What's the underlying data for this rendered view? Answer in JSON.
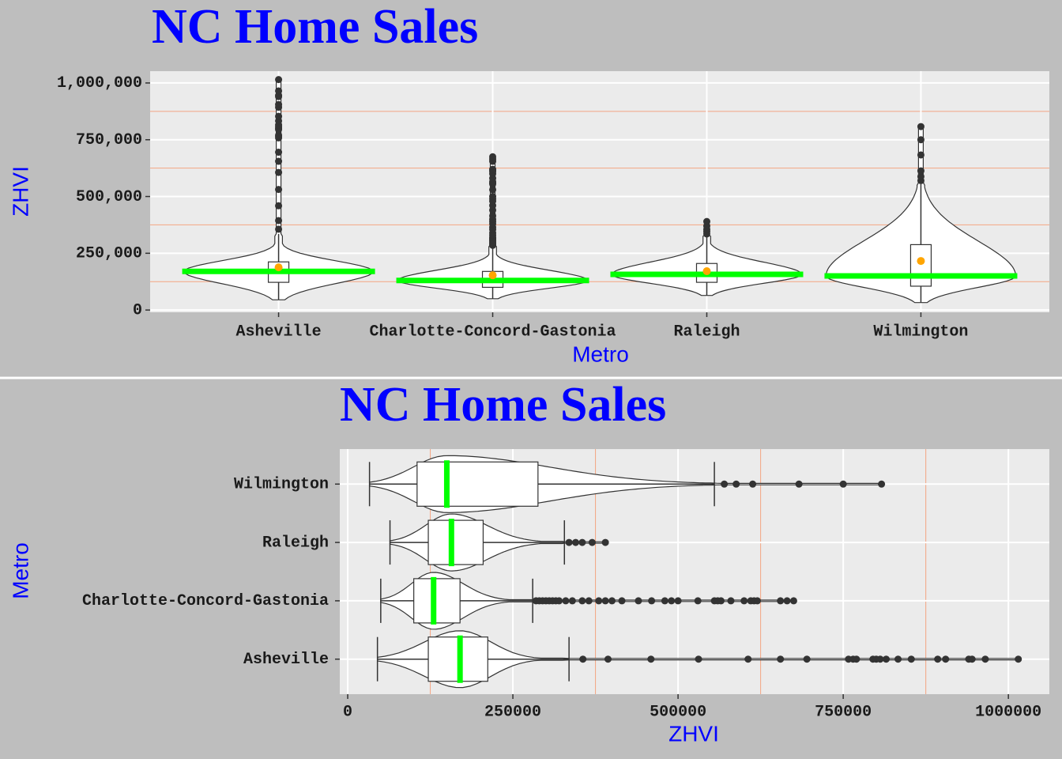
{
  "chart_data": [
    {
      "type": "violin-box",
      "orientation": "vertical",
      "title": "NC Home Sales",
      "x_label": "Metro",
      "y_label": "ZHVI",
      "categories": [
        "Asheville",
        "Charlotte-Concord-Gastonia",
        "Raleigh",
        "Wilmington"
      ],
      "whisker_low": [
        45000,
        50000,
        64000,
        33000
      ],
      "q1": [
        122000,
        100000,
        122000,
        105000
      ],
      "median": [
        170000,
        130000,
        157000,
        150000
      ],
      "q3": [
        212000,
        170000,
        205000,
        288000
      ],
      "whisker_high": [
        335000,
        280000,
        328000,
        555000
      ],
      "means": [
        188000,
        153000,
        171000,
        216000
      ],
      "outliers": [
        [
          356000,
          394000,
          459000,
          531000,
          606000,
          655000,
          695000,
          758000,
          765000,
          770000,
          795000,
          800000,
          806000,
          815000,
          833000,
          853000,
          893000,
          905000,
          940000,
          945000,
          965000,
          1015000
        ],
        [
          285000,
          290000,
          295000,
          300000,
          305000,
          310000,
          315000,
          320000,
          330000,
          340000,
          355000,
          365000,
          380000,
          390000,
          400000,
          415000,
          440000,
          460000,
          480000,
          490000,
          500000,
          530000,
          555000,
          560000,
          565000,
          580000,
          600000,
          610000,
          615000,
          620000,
          655000,
          665000,
          675000
        ],
        [
          335000,
          345000,
          355000,
          370000,
          390000
        ],
        [
          570000,
          588000,
          613000,
          683000,
          750000,
          808000
        ]
      ],
      "median_color": "#00ff00",
      "mean_color": "#ffa500",
      "outlier_color": "#333333",
      "ylim": [
        -10000,
        1052000
      ],
      "yticks": [
        0,
        {
          "value": 250000,
          "label": "250,000"
        },
        {
          "value": 500000,
          "label": "500,000"
        },
        {
          "value": 750000,
          "label": "750,000"
        },
        {
          "value": 1000000,
          "label": "1,000,000"
        }
      ],
      "minor_ticks": [
        125000,
        375000,
        625000,
        875000
      ],
      "minor_grid_color": "#f4a582",
      "grid": true
    },
    {
      "type": "violin-box",
      "orientation": "horizontal",
      "title": "NC Home Sales",
      "x_label": "ZHVI",
      "y_label": "Metro",
      "categories": [
        "Asheville",
        "Charlotte-Concord-Gastonia",
        "Raleigh",
        "Wilmington"
      ],
      "whisker_low": [
        45000,
        50000,
        64000,
        33000
      ],
      "q1": [
        122000,
        100000,
        122000,
        105000
      ],
      "median": [
        170000,
        130000,
        157000,
        150000
      ],
      "q3": [
        212000,
        170000,
        205000,
        288000
      ],
      "whisker_high": [
        335000,
        280000,
        328000,
        555000
      ],
      "outliers": [
        [
          356000,
          394000,
          459000,
          531000,
          606000,
          655000,
          695000,
          758000,
          765000,
          770000,
          795000,
          800000,
          806000,
          815000,
          833000,
          853000,
          893000,
          905000,
          940000,
          945000,
          965000,
          1015000
        ],
        [
          285000,
          290000,
          295000,
          300000,
          305000,
          310000,
          315000,
          320000,
          330000,
          340000,
          355000,
          365000,
          380000,
          390000,
          400000,
          415000,
          440000,
          460000,
          480000,
          490000,
          500000,
          530000,
          555000,
          560000,
          565000,
          580000,
          600000,
          610000,
          615000,
          620000,
          655000,
          665000,
          675000
        ],
        [
          335000,
          345000,
          355000,
          370000,
          390000
        ],
        [
          570000,
          588000,
          613000,
          683000,
          750000,
          808000
        ]
      ],
      "median_color": "#00ff00",
      "outlier_color": "#333333",
      "xlim": [
        -12000,
        1062000
      ],
      "xticks": [
        0,
        250000,
        500000,
        750000,
        1000000
      ],
      "minor_ticks": [
        125000,
        375000,
        625000,
        875000
      ],
      "minor_grid_color": "#f4a582",
      "grid": true
    }
  ]
}
